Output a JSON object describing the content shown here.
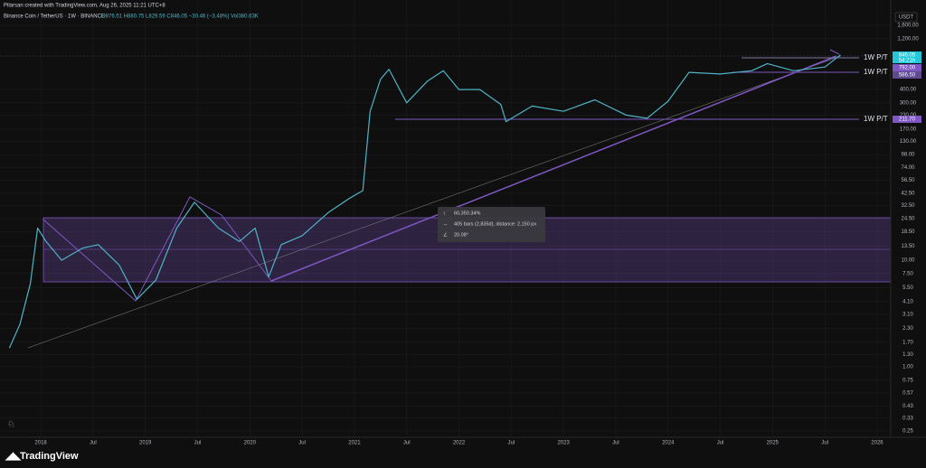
{
  "header": {
    "credit": "Pilarsan created with TradingView.com, Aug 26, 2025 11:21 UTC+8",
    "symbol": "Binance Coin / TetherUS · 1W · BINANCE",
    "ohlc": "O876.51 H880.75 L829.59 C846.05 −30.46 (−3.48%) Vol380.63K",
    "currency": "USDT",
    "brand": "TradingView"
  },
  "chart_data": {
    "type": "line",
    "log": true,
    "color": "#4fb3c6",
    "x": [
      2017.7,
      2017.8,
      2017.9,
      2017.97,
      2018.05,
      2018.2,
      2018.4,
      2018.55,
      2018.75,
      2018.92,
      2019.1,
      2019.3,
      2019.47,
      2019.7,
      2019.9,
      2020.05,
      2020.18,
      2020.3,
      2020.5,
      2020.75,
      2020.95,
      2021.08,
      2021.15,
      2021.25,
      2021.33,
      2021.5,
      2021.7,
      2021.85,
      2022.0,
      2022.2,
      2022.4,
      2022.45,
      2022.7,
      2023.0,
      2023.3,
      2023.6,
      2023.8,
      2024.0,
      2024.2,
      2024.5,
      2024.8,
      2024.95,
      2025.2,
      2025.5,
      2025.65
    ],
    "values": [
      1.5,
      2.5,
      6,
      20,
      15,
      10,
      13,
      14,
      9,
      4.3,
      6.5,
      20,
      35,
      20,
      15,
      20,
      7,
      14,
      17,
      28,
      38,
      45,
      250,
      500,
      620,
      300,
      480,
      600,
      400,
      400,
      290,
      200,
      280,
      250,
      320,
      230,
      215,
      310,
      580,
      560,
      600,
      700,
      600,
      650,
      846.05
    ],
    "xlim": [
      2017.61,
      2026.13
    ],
    "xticks": [
      {
        "value": 2018,
        "label": "2018"
      },
      {
        "value": 2018.5,
        "label": "Jul"
      },
      {
        "value": 2019,
        "label": "2019"
      },
      {
        "value": 2019.5,
        "label": "Jul"
      },
      {
        "value": 2020,
        "label": "2020"
      },
      {
        "value": 2020.5,
        "label": "Jul"
      },
      {
        "value": 2021,
        "label": "2021"
      },
      {
        "value": 2021.5,
        "label": "Jul"
      },
      {
        "value": 2022,
        "label": "2022"
      },
      {
        "value": 2022.5,
        "label": "Jul"
      },
      {
        "value": 2023,
        "label": "2023"
      },
      {
        "value": 2023.5,
        "label": "Jul"
      },
      {
        "value": 2024,
        "label": "2024"
      },
      {
        "value": 2024.5,
        "label": "Jul"
      },
      {
        "value": 2025,
        "label": "2025"
      },
      {
        "value": 2025.5,
        "label": "Jul"
      },
      {
        "value": 2026,
        "label": "2026"
      }
    ],
    "ylim": [
      0.218,
      2190
    ],
    "yticks": [
      {
        "value": 1600,
        "label": "1,600.00"
      },
      {
        "value": 1200,
        "label": "1,200.00"
      },
      {
        "value": 400,
        "label": "400.00"
      },
      {
        "value": 300,
        "label": "300.00"
      },
      {
        "value": 230,
        "label": "230.00"
      },
      {
        "value": 170,
        "label": "170.00"
      },
      {
        "value": 130,
        "label": "130.00"
      },
      {
        "value": 98,
        "label": "98.00"
      },
      {
        "value": 74,
        "label": "74.00"
      },
      {
        "value": 56.5,
        "label": "56.50"
      },
      {
        "value": 42.5,
        "label": "42.50"
      },
      {
        "value": 32.5,
        "label": "32.50"
      },
      {
        "value": 24.5,
        "label": "24.50"
      },
      {
        "value": 18.5,
        "label": "18.50"
      },
      {
        "value": 13.5,
        "label": "13.50"
      },
      {
        "value": 10,
        "label": "10.00"
      },
      {
        "value": 7.5,
        "label": "7.50"
      },
      {
        "value": 5.5,
        "label": "5.50"
      },
      {
        "value": 4.1,
        "label": "4.10"
      },
      {
        "value": 3.1,
        "label": "3.10"
      },
      {
        "value": 2.3,
        "label": "2.30"
      },
      {
        "value": 1.7,
        "label": "1.70"
      },
      {
        "value": 1.3,
        "label": "1.30"
      },
      {
        "value": 1,
        "label": "1.00"
      },
      {
        "value": 0.75,
        "label": "0.75"
      },
      {
        "value": 0.57,
        "label": "0.57"
      },
      {
        "value": 0.43,
        "label": "0.43"
      },
      {
        "value": 0.33,
        "label": "0.33"
      },
      {
        "value": 0.25,
        "label": "0.25"
      }
    ],
    "grid": true,
    "annotations": {
      "level": "1W P/T",
      "measure_pct": "60,350.34%",
      "measure_bars": "405 bars (2,835d), distance: 2,150 px",
      "measure_angle": "20.08°"
    },
    "price_labels": [
      "846.05",
      "54:21h",
      "792.00",
      "586.50",
      "211.70"
    ]
  }
}
